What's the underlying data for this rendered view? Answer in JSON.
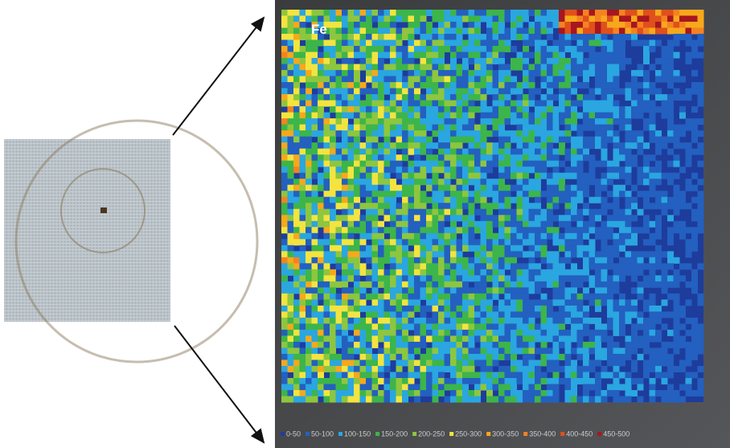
{
  "map": {
    "element": "Fe",
    "legend": [
      {
        "label": "0-50",
        "color": "#1e3c9c"
      },
      {
        "label": "50-100",
        "color": "#2360c0"
      },
      {
        "label": "100-150",
        "color": "#2aa6e0"
      },
      {
        "label": "150-200",
        "color": "#3cb54a"
      },
      {
        "label": "200-250",
        "color": "#8dc63f"
      },
      {
        "label": "250-300",
        "color": "#f3e43f"
      },
      {
        "label": "300-350",
        "color": "#f7a81b"
      },
      {
        "label": "350-400",
        "color": "#f58220"
      },
      {
        "label": "400-450",
        "color": "#e0501c"
      },
      {
        "label": "450-500",
        "color": "#a8161f"
      }
    ]
  }
}
